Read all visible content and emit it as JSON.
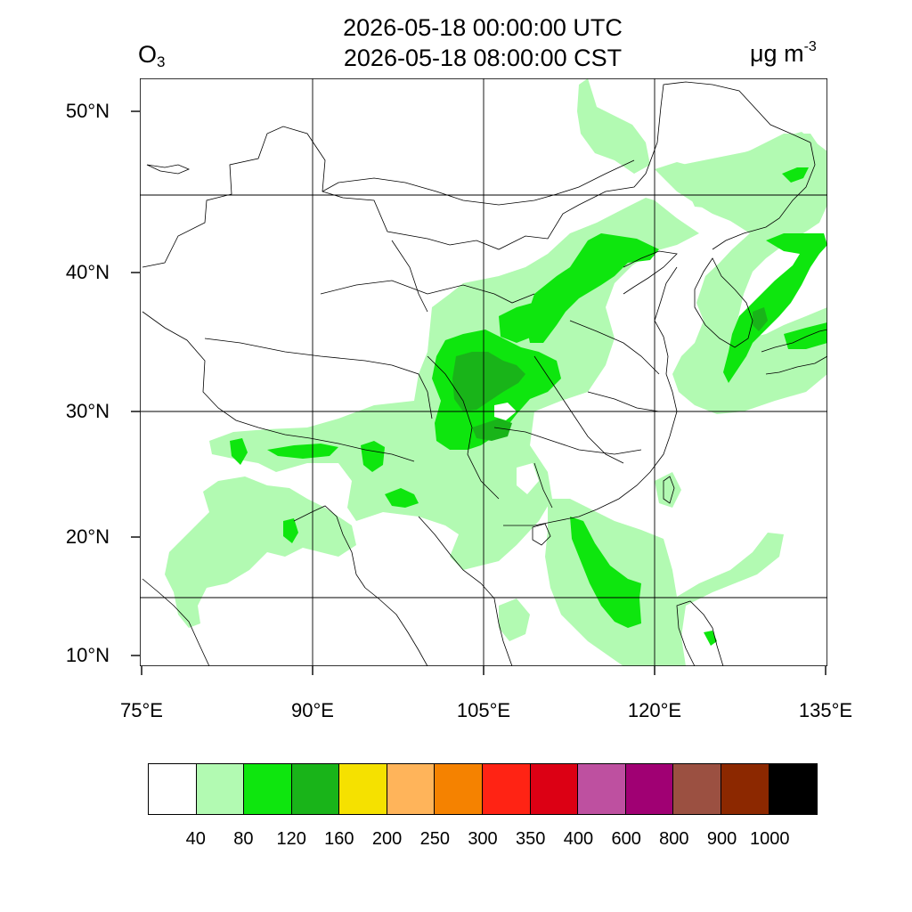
{
  "header": {
    "utc_time": "2026-05-18 00:00:00 UTC",
    "local_time": "2026-05-18 08:00:00 CST",
    "variable": "O",
    "variable_sub": "3",
    "unit": "μg m",
    "unit_sup": "-3"
  },
  "axes": {
    "lat_labels": [
      "50°N",
      "40°N",
      "30°N",
      "20°N",
      "10°N"
    ],
    "lon_labels": [
      "75°E",
      "90°E",
      "105°E",
      "120°E",
      "135°E"
    ],
    "lat_range": [
      9,
      52
    ],
    "lon_range": [
      75,
      135
    ]
  },
  "legend": {
    "colors": [
      "#ffffff",
      "#b2fab2",
      "#0ee60e",
      "#19b419",
      "#f5e100",
      "#ffb45a",
      "#f58200",
      "#ff2314",
      "#dc0014",
      "#be50a0",
      "#a00073",
      "#9b5041",
      "#8c2800",
      "#000000"
    ],
    "ticks": [
      "40",
      "80",
      "120",
      "160",
      "200",
      "250",
      "300",
      "350",
      "400",
      "600",
      "800",
      "900",
      "1000"
    ]
  }
}
